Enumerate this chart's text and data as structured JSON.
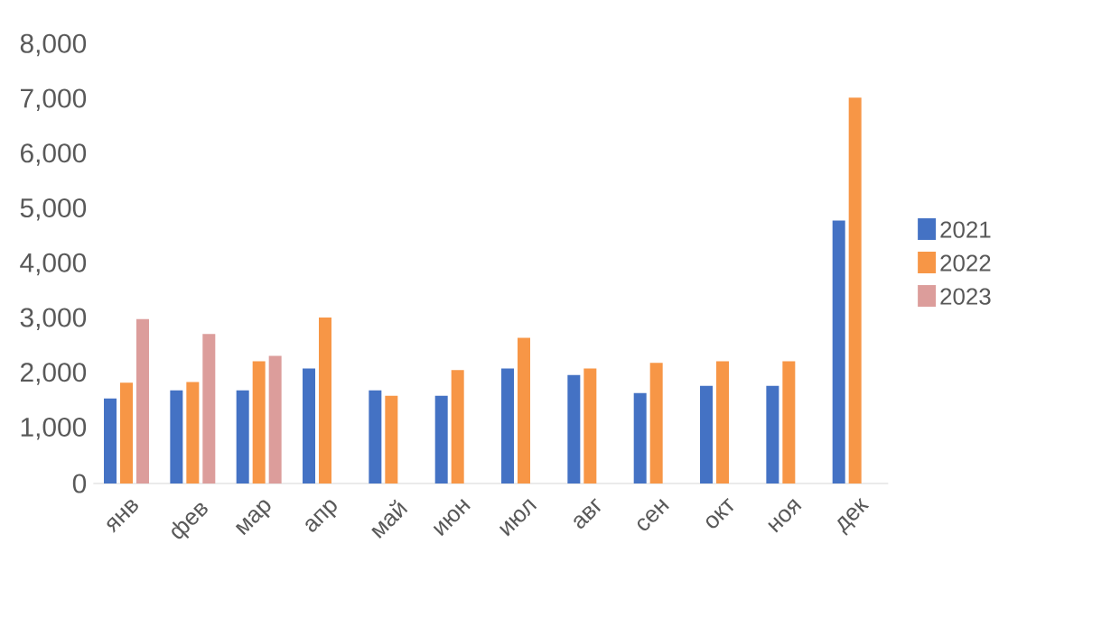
{
  "chart_data": {
    "type": "bar",
    "categories": [
      "янв",
      "фев",
      "мар",
      "апр",
      "май",
      "июн",
      "июл",
      "авг",
      "сен",
      "окт",
      "ноя",
      "дек"
    ],
    "series": [
      {
        "name": "2021",
        "color": "#4472c4",
        "values": [
          1550,
          1700,
          1700,
          2100,
          1700,
          1600,
          2100,
          1980,
          1650,
          1780,
          1780,
          4800
        ]
      },
      {
        "name": "2022",
        "color": "#f79646",
        "values": [
          1840,
          1850,
          2230,
          3030,
          1600,
          2070,
          2660,
          2100,
          2200,
          2230,
          2230,
          7040
        ]
      },
      {
        "name": "2023",
        "color": "#dc9d9b",
        "values": [
          3000,
          2730,
          2330,
          null,
          null,
          null,
          null,
          null,
          null,
          null,
          null,
          null
        ]
      }
    ],
    "ylim": [
      0,
      8000
    ],
    "yticks": [
      0,
      {
        "value": 1000,
        "label": "1,000"
      },
      {
        "value": 2000,
        "label": "2,000"
      },
      {
        "value": 3000,
        "label": "3,000"
      },
      {
        "value": 4000,
        "label": "4,000"
      },
      {
        "value": 5000,
        "label": "5,000"
      },
      {
        "value": 6000,
        "label": "6,000"
      },
      {
        "value": 7000,
        "label": "7,000"
      },
      {
        "value": 8000,
        "label": "8,000"
      }
    ],
    "legend": "right",
    "grid": false
  }
}
